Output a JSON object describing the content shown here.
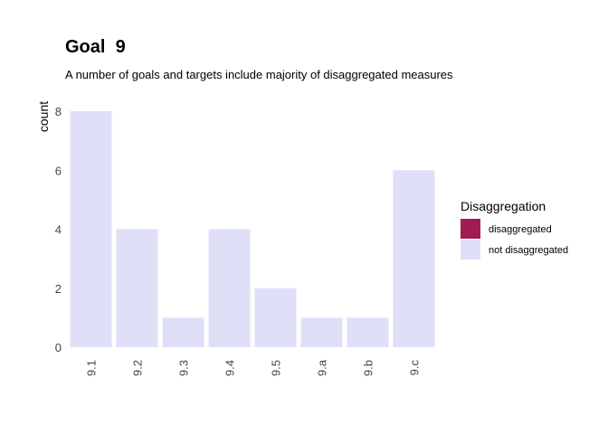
{
  "chart_data": {
    "type": "bar",
    "title": "Goal  9",
    "subtitle": "A number of goals and targets include majority of disaggregated measures",
    "xlabel": "",
    "ylabel": "count",
    "categories": [
      "9.1",
      "9.2",
      "9.3",
      "9.4",
      "9.5",
      "9.a",
      "9.b",
      "9.c"
    ],
    "series": [
      {
        "name": "disaggregated",
        "color": "#a01c52",
        "values": [
          0,
          0,
          0,
          0,
          0,
          0,
          0,
          0
        ]
      },
      {
        "name": "not disaggregated",
        "color": "#dfdff8",
        "values": [
          8,
          4,
          1,
          4,
          2,
          1,
          1,
          6
        ]
      }
    ],
    "ylim": [
      0,
      8
    ],
    "yticks": [
      0,
      2,
      4,
      6,
      8
    ],
    "grid": false,
    "legend": {
      "title": "Disaggregation",
      "position": "right"
    }
  }
}
